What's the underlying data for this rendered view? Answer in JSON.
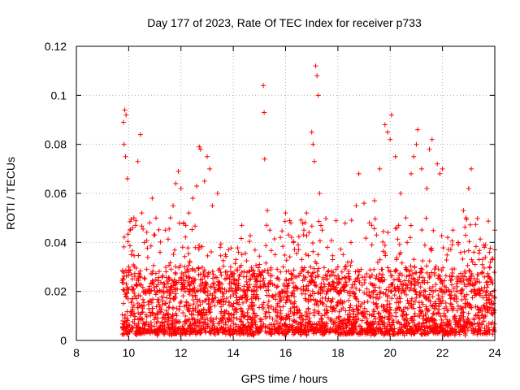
{
  "chart_data": {
    "type": "scatter",
    "title": "Day 177 of 2023, Rate Of TEC Index for receiver p733",
    "xlabel": "GPS time / hours",
    "ylabel": "ROTI / TECUs",
    "xlim": [
      8,
      24
    ],
    "ylim": [
      0,
      0.12
    ],
    "x_ticks": [
      8,
      10,
      12,
      14,
      16,
      18,
      20,
      22,
      24
    ],
    "x_tick_labels": [
      "8",
      "10",
      "12",
      "14",
      "16",
      "18",
      "20",
      "22",
      "24"
    ],
    "y_ticks": [
      0,
      0.02,
      0.04,
      0.06,
      0.08,
      0.1,
      0.12
    ],
    "y_tick_labels": [
      "0",
      "0.02",
      "0.04",
      "0.06",
      "0.08",
      "0.1",
      "0.12"
    ],
    "grid": true,
    "marker": "plus",
    "color": "#ff0000",
    "series": [
      {
        "points": [
          [
            9.8,
            0.089
          ],
          [
            9.85,
            0.094
          ],
          [
            9.9,
            0.092
          ],
          [
            9.82,
            0.08
          ],
          [
            9.88,
            0.075
          ],
          [
            9.95,
            0.066
          ],
          [
            9.8,
            0.025
          ],
          [
            9.9,
            0.018
          ],
          [
            10.0,
            0.03
          ],
          [
            10.05,
            0.045
          ],
          [
            10.1,
            0.035
          ],
          [
            10.2,
            0.05
          ],
          [
            10.35,
            0.073
          ],
          [
            10.45,
            0.084
          ],
          [
            10.5,
            0.052
          ],
          [
            10.6,
            0.04
          ],
          [
            10.8,
            0.048
          ],
          [
            10.9,
            0.058
          ],
          [
            11.0,
            0.043
          ],
          [
            11.2,
            0.036
          ],
          [
            11.4,
            0.045
          ],
          [
            11.6,
            0.05
          ],
          [
            11.7,
            0.055
          ],
          [
            11.8,
            0.064
          ],
          [
            11.9,
            0.069
          ],
          [
            12.0,
            0.062
          ],
          [
            12.1,
            0.048
          ],
          [
            12.3,
            0.052
          ],
          [
            12.45,
            0.058
          ],
          [
            12.6,
            0.063
          ],
          [
            12.7,
            0.079
          ],
          [
            12.75,
            0.078
          ],
          [
            12.9,
            0.065
          ],
          [
            13.0,
            0.075
          ],
          [
            13.1,
            0.07
          ],
          [
            13.2,
            0.055
          ],
          [
            13.4,
            0.06
          ],
          [
            13.5,
            0.038
          ],
          [
            13.7,
            0.035
          ],
          [
            13.9,
            0.03
          ],
          [
            14.1,
            0.033
          ],
          [
            14.2,
            0.036
          ],
          [
            14.4,
            0.026
          ],
          [
            14.6,
            0.028
          ],
          [
            14.8,
            0.022
          ],
          [
            15.0,
            0.031
          ],
          [
            15.15,
            0.104
          ],
          [
            15.18,
            0.093
          ],
          [
            15.2,
            0.074
          ],
          [
            15.3,
            0.053
          ],
          [
            15.4,
            0.045
          ],
          [
            15.6,
            0.035
          ],
          [
            15.8,
            0.042
          ],
          [
            16.0,
            0.052
          ],
          [
            16.2,
            0.048
          ],
          [
            16.3,
            0.04
          ],
          [
            16.5,
            0.037
          ],
          [
            16.7,
            0.045
          ],
          [
            16.8,
            0.052
          ],
          [
            17.0,
            0.085
          ],
          [
            17.05,
            0.08
          ],
          [
            17.1,
            0.073
          ],
          [
            17.15,
            0.112
          ],
          [
            17.2,
            0.108
          ],
          [
            17.25,
            0.1
          ],
          [
            17.3,
            0.06
          ],
          [
            17.4,
            0.045
          ],
          [
            17.6,
            0.038
          ],
          [
            17.8,
            0.033
          ],
          [
            18.0,
            0.03
          ],
          [
            18.2,
            0.035
          ],
          [
            18.5,
            0.04
          ],
          [
            18.7,
            0.055
          ],
          [
            18.8,
            0.068
          ],
          [
            19.0,
            0.056
          ],
          [
            19.2,
            0.048
          ],
          [
            19.4,
            0.057
          ],
          [
            19.6,
            0.07
          ],
          [
            19.8,
            0.088
          ],
          [
            19.9,
            0.085
          ],
          [
            20.0,
            0.082
          ],
          [
            20.05,
            0.092
          ],
          [
            20.2,
            0.075
          ],
          [
            20.4,
            0.06
          ],
          [
            20.6,
            0.05
          ],
          [
            20.8,
            0.068
          ],
          [
            20.9,
            0.075
          ],
          [
            21.0,
            0.08
          ],
          [
            21.05,
            0.086
          ],
          [
            21.2,
            0.07
          ],
          [
            21.4,
            0.062
          ],
          [
            21.5,
            0.078
          ],
          [
            21.6,
            0.082
          ],
          [
            21.8,
            0.072
          ],
          [
            21.9,
            0.068
          ],
          [
            22.0,
            0.07
          ],
          [
            22.2,
            0.042
          ],
          [
            22.4,
            0.045
          ],
          [
            22.6,
            0.04
          ],
          [
            22.8,
            0.053
          ],
          [
            22.9,
            0.05
          ],
          [
            23.0,
            0.062
          ],
          [
            23.1,
            0.07
          ],
          [
            23.2,
            0.036
          ],
          [
            23.4,
            0.033
          ],
          [
            23.6,
            0.038
          ],
          [
            23.8,
            0.03
          ],
          [
            23.9,
            0.033
          ],
          [
            24.0,
            0.045
          ],
          [
            24.0,
            0.037
          ]
        ]
      }
    ],
    "dense_band": {
      "x_start": 9.75,
      "x_end": 24.0,
      "y_low": 0.002,
      "y_typical_high": 0.03
    }
  }
}
